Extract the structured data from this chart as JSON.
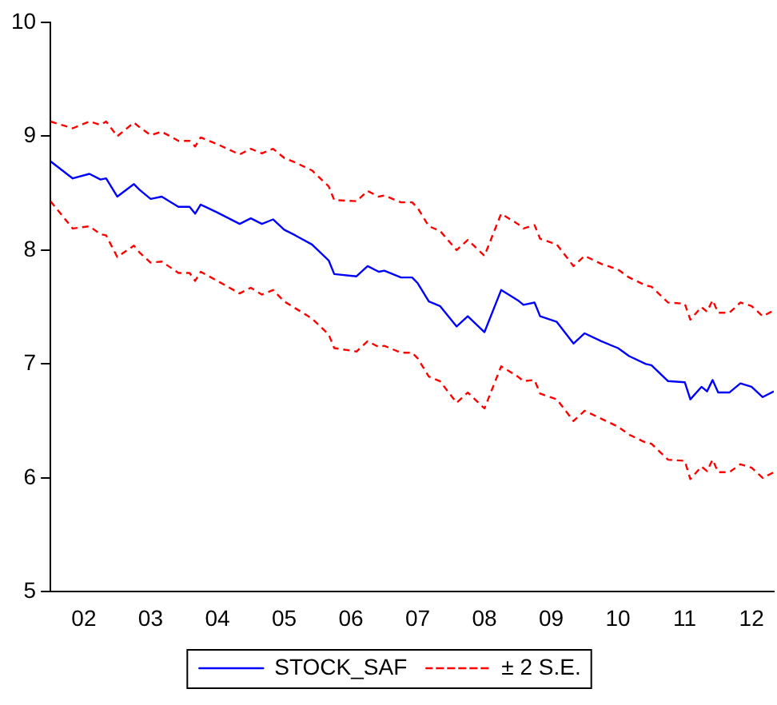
{
  "chart_data": {
    "type": "line",
    "x": [
      "2002-01",
      "2002-05",
      "2002-08",
      "2002-10",
      "2002-11",
      "2003-01",
      "2003-04",
      "2003-05",
      "2003-07",
      "2003-09",
      "2003-12",
      "2004-02",
      "2004-03",
      "2004-04",
      "2004-07",
      "2004-11",
      "2005-01",
      "2005-03",
      "2005-05",
      "2005-07",
      "2005-09",
      "2005-12",
      "2006-03",
      "2006-04",
      "2006-08",
      "2006-10",
      "2006-12",
      "2007-01",
      "2007-04",
      "2007-06",
      "2007-07",
      "2007-09",
      "2007-11",
      "2008-02",
      "2008-04",
      "2008-07",
      "2008-10",
      "2009-01",
      "2009-02",
      "2009-04",
      "2009-05",
      "2009-08",
      "2009-11",
      "2010-01",
      "2010-04",
      "2010-07",
      "2010-09",
      "2010-12",
      "2011-01",
      "2011-04",
      "2011-07",
      "2011-08",
      "2011-10",
      "2011-11",
      "2011-12",
      "2012-01",
      "2012-03",
      "2012-05",
      "2012-07",
      "2012-09",
      "2012-11"
    ],
    "series": [
      {
        "name": "STOCK_SAF",
        "color": "#0000ff",
        "line_style": "solid",
        "values": [
          8.78,
          8.63,
          8.67,
          8.62,
          8.63,
          8.47,
          8.58,
          8.53,
          8.45,
          8.47,
          8.38,
          8.38,
          8.32,
          8.4,
          8.33,
          8.23,
          8.28,
          8.23,
          8.27,
          8.18,
          8.13,
          8.05,
          7.91,
          7.79,
          7.77,
          7.86,
          7.81,
          7.82,
          7.76,
          7.76,
          7.71,
          7.55,
          7.51,
          7.33,
          7.42,
          7.28,
          7.65,
          7.56,
          7.52,
          7.54,
          7.42,
          7.37,
          7.18,
          7.27,
          7.2,
          7.14,
          7.07,
          7.0,
          6.99,
          6.85,
          6.84,
          6.69,
          6.8,
          6.76,
          6.86,
          6.75,
          6.75,
          6.83,
          6.8,
          6.71,
          6.76
        ]
      },
      {
        "name": "± 2 S.E.",
        "color": "#ff0000",
        "line_style": "dashed",
        "values": [
          9.13,
          9.07,
          9.13,
          9.1,
          9.13,
          9.0,
          9.12,
          9.08,
          9.01,
          9.04,
          8.96,
          8.96,
          8.91,
          8.99,
          8.93,
          8.84,
          8.89,
          8.85,
          8.89,
          8.81,
          8.77,
          8.7,
          8.56,
          8.44,
          8.43,
          8.52,
          8.47,
          8.48,
          8.42,
          8.42,
          8.37,
          8.21,
          8.17,
          8.0,
          8.09,
          7.95,
          8.32,
          8.23,
          8.19,
          8.22,
          8.1,
          8.05,
          7.86,
          7.95,
          7.88,
          7.83,
          7.76,
          7.69,
          7.68,
          7.54,
          7.53,
          7.39,
          7.5,
          7.46,
          7.56,
          7.45,
          7.45,
          7.54,
          7.51,
          7.42,
          7.47
        ]
      },
      {
        "color": "#ff0000",
        "line_style": "dashed",
        "values": [
          8.43,
          8.19,
          8.21,
          8.14,
          8.13,
          7.94,
          8.04,
          7.98,
          7.89,
          7.9,
          7.8,
          7.8,
          7.73,
          7.81,
          7.73,
          7.62,
          7.67,
          7.61,
          7.65,
          7.55,
          7.49,
          7.4,
          7.26,
          7.14,
          7.11,
          7.2,
          7.15,
          7.16,
          7.1,
          7.1,
          7.05,
          6.89,
          6.85,
          6.66,
          6.75,
          6.61,
          6.98,
          6.89,
          6.85,
          6.86,
          6.74,
          6.69,
          6.5,
          6.59,
          6.52,
          6.45,
          6.38,
          6.31,
          6.3,
          6.16,
          6.15,
          5.99,
          6.1,
          6.06,
          6.16,
          6.05,
          6.05,
          6.12,
          6.09,
          6.0,
          6.05
        ]
      }
    ],
    "xlim": [
      "2002-01",
      "2012-11"
    ],
    "xticks": [
      {
        "value": "2002-07",
        "label": "02"
      },
      {
        "value": "2003-07",
        "label": "03"
      },
      {
        "value": "2004-07",
        "label": "04"
      },
      {
        "value": "2005-07",
        "label": "05"
      },
      {
        "value": "2006-07",
        "label": "06"
      },
      {
        "value": "2007-07",
        "label": "07"
      },
      {
        "value": "2008-07",
        "label": "08"
      },
      {
        "value": "2009-07",
        "label": "09"
      },
      {
        "value": "2010-07",
        "label": "10"
      },
      {
        "value": "2011-07",
        "label": "11"
      },
      {
        "value": "2012-07",
        "label": "12"
      }
    ],
    "ylim": [
      5,
      10
    ],
    "yticks": [
      5,
      6,
      7,
      8,
      9,
      10
    ],
    "grid": false,
    "legend": "bottom",
    "marker": "none"
  }
}
